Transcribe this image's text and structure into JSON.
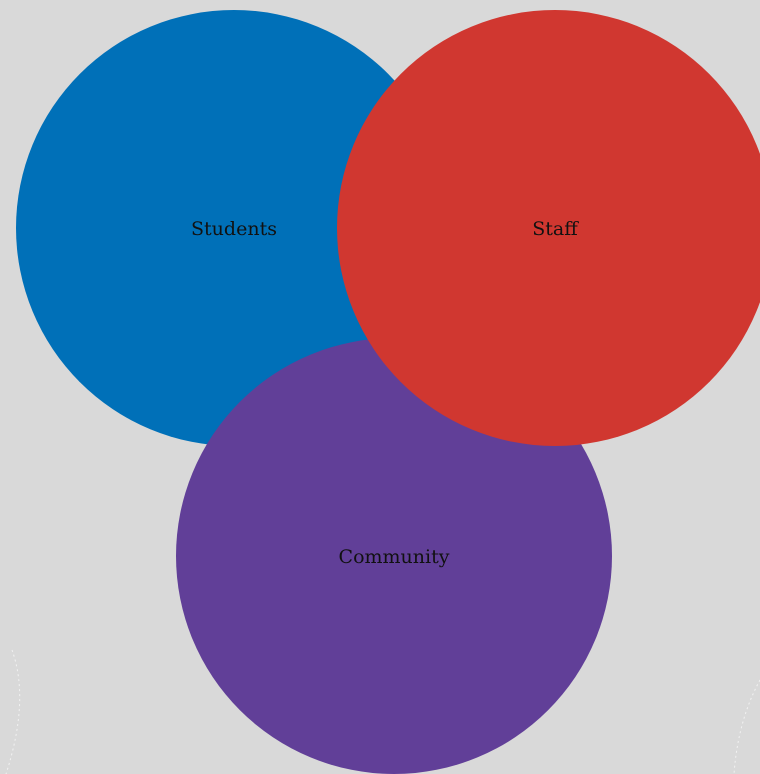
{
  "diagram": {
    "background_color": "#d9d9d9",
    "circles": [
      {
        "label": "Students",
        "color": "#0070b8"
      },
      {
        "label": "Staff",
        "color": "#d03730"
      },
      {
        "label": "Community",
        "color": "#613f98"
      }
    ]
  }
}
